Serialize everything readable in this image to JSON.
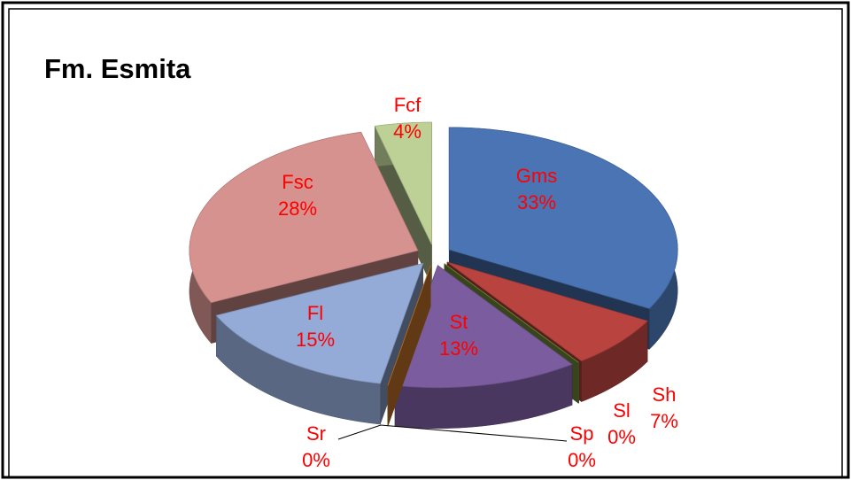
{
  "chart_data": {
    "type": "pie3d",
    "title": "Fm. Esmita",
    "categories": [
      "Gms",
      "Sh",
      "Sl",
      "Sp",
      "St",
      "Sr",
      "Fl",
      "Fsc",
      "Fcf"
    ],
    "values": [
      33,
      7,
      0,
      0,
      13,
      0,
      15,
      28,
      4
    ],
    "value_labels": [
      "33%",
      "7%",
      "0%",
      "0%",
      "13%",
      "0%",
      "15%",
      "28%",
      "4%"
    ],
    "colors": [
      "#4a74b4",
      "#b8433f",
      "#6f8f34",
      "#7d9a3e",
      "#7b5c9e",
      "#d8802f",
      "#94abd8",
      "#d6928f",
      "#bdd197"
    ]
  }
}
